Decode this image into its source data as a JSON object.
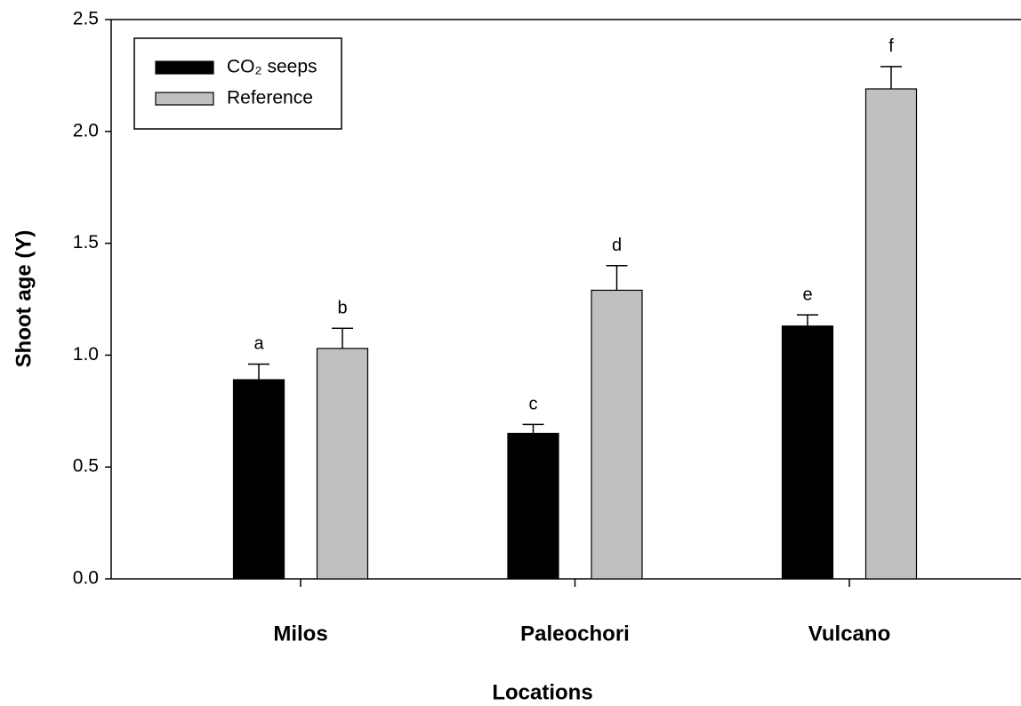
{
  "chart_data": {
    "type": "bar",
    "xlabel": "Locations",
    "ylabel": "Shoot age (Y)",
    "categories": [
      "Milos",
      "Paleochori",
      "Vulcano"
    ],
    "series": [
      {
        "name": "CO₂ seeps",
        "color": "#000000",
        "values": [
          0.89,
          0.65,
          1.13
        ],
        "errors": [
          0.07,
          0.04,
          0.05
        ],
        "letters": [
          "a",
          "c",
          "e"
        ]
      },
      {
        "name": "Reference",
        "color": "#c0c0c0",
        "values": [
          1.03,
          1.29,
          2.19
        ],
        "errors": [
          0.09,
          0.11,
          0.1
        ],
        "letters": [
          "b",
          "d",
          "f"
        ]
      }
    ],
    "ylim": [
      0,
      2.5
    ],
    "yticks": [
      {
        "value": 0,
        "label": "0.0"
      },
      0.5,
      {
        "value": 1,
        "label": "1.0"
      },
      1.5,
      {
        "value": 2,
        "label": "2.0"
      },
      2.5
    ],
    "legend": "upper left"
  }
}
